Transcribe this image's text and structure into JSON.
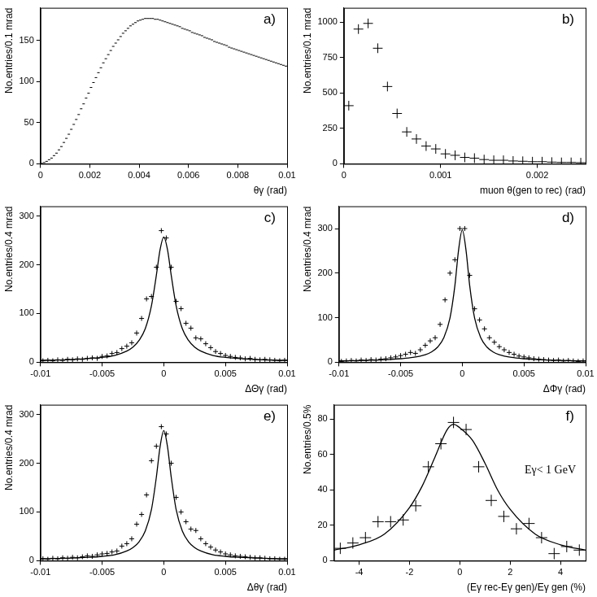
{
  "chart_data": [
    {
      "type": "scatter",
      "title": "a)",
      "x_label": "θγ (rad)",
      "y_label": "No.entries/0.1 mrad",
      "xlim": [
        0,
        0.01
      ],
      "ylim": [
        0,
        190
      ],
      "xticks": [
        0,
        0.002,
        0.004,
        0.006,
        0.008,
        0.01
      ],
      "yticks": [
        0,
        50,
        100,
        150
      ],
      "grid": false,
      "series": [
        {
          "type": "scatter",
          "marker": "dash",
          "color": "#000000",
          "x": [
            5e-05,
            0.00015,
            0.00025,
            0.00035,
            0.00045,
            0.00055,
            0.00065,
            0.00075,
            0.00085,
            0.00095,
            0.00105,
            0.00115,
            0.00125,
            0.00135,
            0.00145,
            0.00155,
            0.00165,
            0.00175,
            0.00185,
            0.00195,
            0.00205,
            0.00215,
            0.00225,
            0.00235,
            0.00245,
            0.00255,
            0.00265,
            0.00275,
            0.00285,
            0.00295,
            0.00305,
            0.00315,
            0.00325,
            0.00335,
            0.00345,
            0.00355,
            0.00365,
            0.00375,
            0.00385,
            0.00395,
            0.00405,
            0.00415,
            0.00425,
            0.00435,
            0.00445,
            0.00455,
            0.00465,
            0.00475,
            0.00485,
            0.00495,
            0.00505,
            0.00515,
            0.00525,
            0.00535,
            0.00545,
            0.00555,
            0.00565,
            0.00575,
            0.00585,
            0.00595,
            0.00605,
            0.00615,
            0.00625,
            0.00635,
            0.00645,
            0.00655,
            0.00665,
            0.00675,
            0.00685,
            0.00695,
            0.00705,
            0.00715,
            0.00725,
            0.00735,
            0.00745,
            0.00755,
            0.00765,
            0.00775,
            0.00785,
            0.00795,
            0.00805,
            0.00815,
            0.00825,
            0.00835,
            0.00845,
            0.00855,
            0.00865,
            0.00875,
            0.00885,
            0.00895,
            0.00905,
            0.00915,
            0.00925,
            0.00935,
            0.00945,
            0.00955,
            0.00965,
            0.00975,
            0.00985,
            0.00995
          ],
          "values": [
            0.5,
            1.5,
            3,
            5,
            7,
            10,
            13,
            17,
            21,
            26,
            31,
            36,
            42,
            48,
            54,
            60,
            67,
            73,
            80,
            86,
            93,
            99,
            105,
            111,
            117,
            123,
            128,
            133,
            138,
            143,
            147,
            151,
            155,
            159,
            162,
            165,
            168,
            170,
            172,
            174,
            175,
            176,
            177,
            177,
            177,
            177,
            176,
            176,
            175,
            174,
            173,
            172,
            171,
            170,
            169,
            168,
            167,
            165,
            164,
            163,
            162,
            160,
            159,
            158,
            157,
            156,
            154,
            153,
            152,
            151,
            149,
            148,
            147,
            146,
            145,
            144,
            142,
            141,
            140,
            139,
            138,
            137,
            136,
            135,
            134,
            133,
            132,
            131,
            130,
            129,
            128,
            127,
            126,
            125,
            124,
            123,
            122,
            121,
            120,
            119
          ]
        }
      ]
    },
    {
      "type": "scatter",
      "title": "b)",
      "x_label": "muon θ(gen to rec) (rad)",
      "y_label": "No.entries/0.1 mrad",
      "xlim": [
        0,
        0.0025
      ],
      "ylim": [
        0,
        1100
      ],
      "xticks": [
        0,
        0.001,
        0.002
      ],
      "yticks": [
        0,
        250,
        500,
        750,
        1000
      ],
      "grid": false,
      "series": [
        {
          "type": "scatter",
          "marker": "cross",
          "color": "#000000",
          "x": [
            5e-05,
            0.00015,
            0.00025,
            0.00035,
            0.00045,
            0.00055,
            0.00065,
            0.00075,
            0.00085,
            0.00095,
            0.00105,
            0.00115,
            0.00125,
            0.00135,
            0.00145,
            0.00155,
            0.00165,
            0.00175,
            0.00185,
            0.00195,
            0.00205,
            0.00215,
            0.00225,
            0.00235,
            0.00245
          ],
          "values": [
            410,
            950,
            990,
            815,
            545,
            355,
            225,
            175,
            125,
            105,
            70,
            60,
            45,
            40,
            30,
            25,
            25,
            20,
            18,
            15,
            15,
            12,
            10,
            10,
            8
          ]
        }
      ]
    },
    {
      "type": "scatter",
      "title": "c)",
      "x_label": "ΔΘγ (rad)",
      "y_label": "No.entries/0.4 mrad",
      "xlim": [
        -0.01,
        0.01
      ],
      "ylim": [
        0,
        320
      ],
      "xticks": [
        -0.01,
        -0.005,
        0,
        0.005,
        0.01
      ],
      "yticks": [
        0,
        100,
        200,
        300
      ],
      "grid": false,
      "series": [
        {
          "type": "scatter",
          "marker": "cross",
          "color": "#000000",
          "x": [
            -0.0098,
            -0.0094,
            -0.009,
            -0.0086,
            -0.0082,
            -0.0078,
            -0.0074,
            -0.007,
            -0.0066,
            -0.0062,
            -0.0058,
            -0.0054,
            -0.005,
            -0.0046,
            -0.0042,
            -0.0038,
            -0.0034,
            -0.003,
            -0.0026,
            -0.0022,
            -0.0018,
            -0.0014,
            -0.001,
            -0.0006,
            -0.0002,
            0.0002,
            0.0006,
            0.001,
            0.0014,
            0.0018,
            0.0022,
            0.0026,
            0.003,
            0.0034,
            0.0038,
            0.0042,
            0.0046,
            0.005,
            0.0054,
            0.0058,
            0.0062,
            0.0066,
            0.007,
            0.0074,
            0.0078,
            0.0082,
            0.0086,
            0.009,
            0.0094,
            0.0098
          ],
          "values": [
            3,
            4,
            3,
            5,
            4,
            6,
            5,
            7,
            6,
            8,
            9,
            8,
            12,
            13,
            18,
            20,
            28,
            33,
            40,
            60,
            90,
            130,
            135,
            195,
            270,
            255,
            195,
            125,
            110,
            80,
            70,
            50,
            48,
            38,
            30,
            22,
            18,
            14,
            12,
            10,
            9,
            7,
            8,
            6,
            5,
            6,
            5,
            4,
            3,
            4
          ]
        },
        {
          "type": "line",
          "line_style": "solid",
          "color": "#000000",
          "x": [
            -0.01,
            -0.008,
            -0.006,
            -0.005,
            -0.004,
            -0.003,
            -0.0025,
            -0.002,
            -0.0015,
            -0.001,
            -0.0006,
            -0.0003,
            0,
            0.0003,
            0.0006,
            0.001,
            0.0015,
            0.002,
            0.0025,
            0.003,
            0.004,
            0.005,
            0.006,
            0.008,
            0.01
          ],
          "values": [
            4,
            5,
            8,
            10,
            14,
            23,
            31,
            45,
            69,
            116,
            179,
            231,
            257,
            231,
            179,
            116,
            69,
            45,
            31,
            23,
            14,
            10,
            8,
            5,
            4
          ]
        }
      ]
    },
    {
      "type": "scatter",
      "title": "d)",
      "x_label": "ΔΦγ (rad)",
      "y_label": "No.entries/0.4 mrad",
      "xlim": [
        -0.01,
        0.01
      ],
      "ylim": [
        0,
        350
      ],
      "xticks": [
        -0.01,
        -0.005,
        0,
        0.005,
        0.01
      ],
      "yticks": [
        0,
        100,
        200,
        300
      ],
      "grid": false,
      "series": [
        {
          "type": "scatter",
          "marker": "cross",
          "color": "#000000",
          "x": [
            -0.0098,
            -0.0094,
            -0.009,
            -0.0086,
            -0.0082,
            -0.0078,
            -0.0074,
            -0.007,
            -0.0066,
            -0.0062,
            -0.0058,
            -0.0054,
            -0.005,
            -0.0046,
            -0.0042,
            -0.0038,
            -0.0034,
            -0.003,
            -0.0026,
            -0.0022,
            -0.0018,
            -0.0014,
            -0.001,
            -0.0006,
            -0.0002,
            0.0002,
            0.0006,
            0.001,
            0.0014,
            0.0018,
            0.0022,
            0.0026,
            0.003,
            0.0034,
            0.0038,
            0.0042,
            0.0046,
            0.005,
            0.0054,
            0.0058,
            0.0062,
            0.0066,
            0.007,
            0.0074,
            0.0078,
            0.0082,
            0.0086,
            0.009,
            0.0094,
            0.0098
          ],
          "values": [
            2,
            3,
            4,
            3,
            5,
            4,
            6,
            5,
            7,
            8,
            10,
            12,
            15,
            18,
            22,
            20,
            28,
            38,
            48,
            55,
            85,
            140,
            200,
            230,
            300,
            300,
            195,
            120,
            95,
            75,
            55,
            45,
            35,
            28,
            22,
            18,
            14,
            12,
            10,
            8,
            7,
            6,
            5,
            4,
            5,
            3,
            4,
            3,
            2,
            3
          ]
        },
        {
          "type": "line",
          "line_style": "solid",
          "color": "#000000",
          "x": [
            -0.01,
            -0.008,
            -0.006,
            -0.005,
            -0.004,
            -0.003,
            -0.0025,
            -0.002,
            -0.0015,
            -0.001,
            -0.0006,
            -0.0003,
            0,
            0.0003,
            0.0006,
            0.001,
            0.0015,
            0.002,
            0.0025,
            0.003,
            0.004,
            0.005,
            0.006,
            0.008,
            0.01
          ],
          "values": [
            3,
            4,
            6,
            8,
            11,
            17,
            23,
            34,
            55,
            99,
            172,
            252,
            297,
            252,
            172,
            99,
            55,
            34,
            23,
            17,
            11,
            8,
            6,
            4,
            3
          ]
        }
      ]
    },
    {
      "type": "scatter",
      "title": "e)",
      "x_label": "Δθγ (rad)",
      "y_label": "No.entries/0.4 mrad",
      "xlim": [
        -0.01,
        0.01
      ],
      "ylim": [
        0,
        320
      ],
      "xticks": [
        -0.01,
        -0.005,
        0,
        0.005,
        0.01
      ],
      "yticks": [
        0,
        100,
        200,
        300
      ],
      "grid": false,
      "series": [
        {
          "type": "scatter",
          "marker": "cross",
          "color": "#000000",
          "x": [
            -0.0098,
            -0.0094,
            -0.009,
            -0.0086,
            -0.0082,
            -0.0078,
            -0.0074,
            -0.007,
            -0.0066,
            -0.0062,
            -0.0058,
            -0.0054,
            -0.005,
            -0.0046,
            -0.0042,
            -0.0038,
            -0.0034,
            -0.003,
            -0.0026,
            -0.0022,
            -0.0018,
            -0.0014,
            -0.001,
            -0.0006,
            -0.0002,
            0.0002,
            0.0006,
            0.001,
            0.0014,
            0.0018,
            0.0022,
            0.0026,
            0.003,
            0.0034,
            0.0038,
            0.0042,
            0.0046,
            0.005,
            0.0054,
            0.0058,
            0.0062,
            0.0066,
            0.007,
            0.0074,
            0.0078,
            0.0082,
            0.0086,
            0.009,
            0.0094,
            0.0098
          ],
          "values": [
            4,
            3,
            5,
            4,
            6,
            5,
            7,
            6,
            8,
            10,
            9,
            12,
            14,
            15,
            18,
            20,
            30,
            35,
            45,
            75,
            95,
            135,
            205,
            235,
            275,
            260,
            200,
            130,
            100,
            80,
            65,
            62,
            45,
            35,
            28,
            22,
            18,
            14,
            12,
            10,
            9,
            8,
            7,
            6,
            6,
            5,
            4,
            4,
            3,
            3
          ]
        },
        {
          "type": "line",
          "line_style": "solid",
          "color": "#000000",
          "x": [
            -0.01,
            -0.008,
            -0.006,
            -0.005,
            -0.004,
            -0.003,
            -0.0025,
            -0.002,
            -0.0015,
            -0.001,
            -0.0006,
            -0.0003,
            0,
            0.0003,
            0.0006,
            0.001,
            0.0015,
            0.002,
            0.0025,
            0.003,
            0.004,
            0.005,
            0.006,
            0.008,
            0.01
          ],
          "values": [
            4,
            5,
            7,
            9,
            12,
            20,
            27,
            39,
            61,
            105,
            172,
            234,
            267,
            234,
            172,
            105,
            61,
            39,
            27,
            20,
            12,
            9,
            7,
            5,
            4
          ]
        }
      ]
    },
    {
      "type": "scatter",
      "title": "f)",
      "x_label": "(Eγ rec-Eγ gen)/Eγ gen (%)",
      "y_label": "No.entries/0.5%",
      "annotations": [
        "Eγ< 1 GeV"
      ],
      "xlim": [
        -5,
        5
      ],
      "ylim": [
        0,
        88
      ],
      "xticks": [
        -4,
        -2,
        0,
        2,
        4
      ],
      "yticks": [
        0,
        20,
        40,
        60,
        80
      ],
      "grid": false,
      "series": [
        {
          "type": "scatter",
          "marker": "cross",
          "color": "#000000",
          "x": [
            -4.75,
            -4.25,
            -3.75,
            -3.25,
            -2.75,
            -2.25,
            -1.75,
            -1.25,
            -0.75,
            -0.25,
            0.25,
            0.75,
            1.25,
            1.75,
            2.25,
            2.75,
            3.25,
            3.75,
            4.25,
            4.75
          ],
          "values": [
            7,
            10,
            13,
            22,
            22,
            23,
            31,
            53,
            66,
            78,
            74,
            53,
            34,
            25,
            18,
            21,
            13,
            4,
            8,
            6
          ]
        },
        {
          "type": "line",
          "line_style": "solid",
          "color": "#000000",
          "x": [
            -5,
            -4,
            -3,
            -2,
            -1.5,
            -1,
            -0.5,
            -0.25,
            0,
            0.5,
            1,
            1.5,
            2,
            3,
            4,
            5
          ],
          "values": [
            6,
            9,
            15,
            30,
            42,
            58,
            74,
            77,
            75,
            68,
            55,
            40,
            29,
            15,
            9,
            6
          ]
        }
      ]
    }
  ]
}
